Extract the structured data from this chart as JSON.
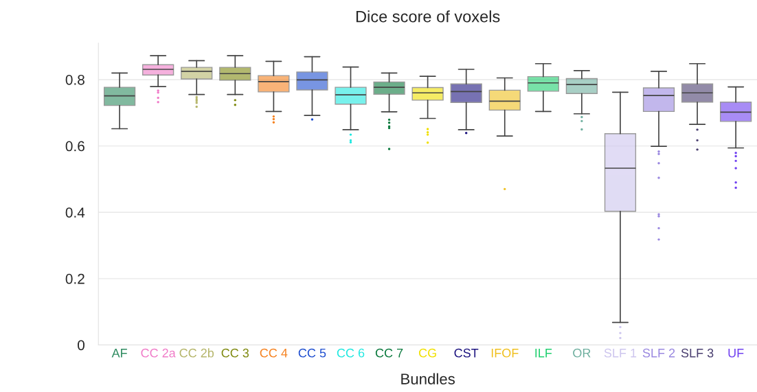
{
  "chart_data": {
    "type": "box",
    "title": "Dice score of voxels",
    "xlabel": "Bundles",
    "categories": [
      "AF",
      "CC 2a",
      "CC 2b",
      "CC 3",
      "CC 4",
      "CC 5",
      "CC 6",
      "CC 7",
      "CG",
      "CST",
      "IFOF",
      "ILF",
      "OR",
      "SLF 1",
      "SLF 2",
      "SLF 3",
      "UF"
    ],
    "colors": [
      "#2e8b60",
      "#f07cc8",
      "#b5b56a",
      "#7f8a10",
      "#f58220",
      "#1f4fd0",
      "#20e8e0",
      "#0b7a3e",
      "#f0e000",
      "#1e1580",
      "#f0c020",
      "#20d070",
      "#70b0a0",
      "#cdc5ee",
      "#9a88e0",
      "#4a3f70",
      "#7040f0"
    ],
    "boxes": [
      {
        "low": 0.652,
        "q1": 0.722,
        "median": 0.751,
        "q3": 0.777,
        "high": 0.82
      },
      {
        "low": 0.779,
        "q1": 0.814,
        "median": 0.831,
        "q3": 0.845,
        "high": 0.872,
        "outliers": [
          0.767,
          0.761,
          0.745,
          0.732
        ]
      },
      {
        "low": 0.755,
        "q1": 0.802,
        "median": 0.825,
        "q3": 0.837,
        "high": 0.857,
        "outliers": [
          0.747,
          0.741,
          0.736,
          0.73,
          0.718
        ]
      },
      {
        "low": 0.755,
        "q1": 0.798,
        "median": 0.818,
        "q3": 0.837,
        "high": 0.872,
        "outliers": [
          0.738,
          0.724
        ]
      },
      {
        "low": 0.704,
        "q1": 0.763,
        "median": 0.794,
        "q3": 0.812,
        "high": 0.855,
        "outliers": [
          0.689,
          0.681,
          0.671
        ]
      },
      {
        "low": 0.692,
        "q1": 0.769,
        "median": 0.799,
        "q3": 0.823,
        "high": 0.869,
        "outliers": [
          0.68
        ]
      },
      {
        "low": 0.649,
        "q1": 0.726,
        "median": 0.754,
        "q3": 0.777,
        "high": 0.838,
        "outliers": [
          0.634,
          0.617,
          0.611
        ]
      },
      {
        "low": 0.703,
        "q1": 0.756,
        "median": 0.777,
        "q3": 0.793,
        "high": 0.82,
        "outliers": [
          0.679,
          0.67,
          0.659,
          0.654,
          0.591
        ]
      },
      {
        "low": 0.683,
        "q1": 0.738,
        "median": 0.76,
        "q3": 0.776,
        "high": 0.81,
        "outliers": [
          0.651,
          0.641,
          0.634,
          0.61
        ]
      },
      {
        "low": 0.649,
        "q1": 0.731,
        "median": 0.764,
        "q3": 0.787,
        "high": 0.831,
        "outliers": [
          0.639
        ]
      },
      {
        "low": 0.63,
        "q1": 0.708,
        "median": 0.735,
        "q3": 0.768,
        "high": 0.805,
        "outliers": [
          0.47
        ]
      },
      {
        "low": 0.704,
        "q1": 0.765,
        "median": 0.79,
        "q3": 0.809,
        "high": 0.848
      },
      {
        "low": 0.697,
        "q1": 0.758,
        "median": 0.785,
        "q3": 0.803,
        "high": 0.827,
        "outliers": [
          0.687,
          0.675,
          0.65
        ]
      },
      {
        "low": 0.068,
        "q1": 0.403,
        "median": 0.533,
        "q3": 0.637,
        "high": 0.762,
        "outliers": [
          0.054,
          0.036,
          0.021
        ]
      },
      {
        "low": 0.599,
        "q1": 0.704,
        "median": 0.752,
        "q3": 0.775,
        "high": 0.825,
        "outliers": [
          0.583,
          0.576,
          0.548,
          0.504,
          0.394,
          0.388,
          0.352,
          0.318
        ]
      },
      {
        "low": 0.665,
        "q1": 0.732,
        "median": 0.76,
        "q3": 0.787,
        "high": 0.848,
        "outliers": [
          0.649,
          0.617,
          0.589
        ]
      },
      {
        "low": 0.594,
        "q1": 0.674,
        "median": 0.702,
        "q3": 0.732,
        "high": 0.778,
        "outliers": [
          0.579,
          0.569,
          0.555,
          0.533,
          0.49,
          0.474
        ]
      }
    ],
    "ylim": [
      0,
      0.91
    ],
    "yticks": [
      0,
      0.2,
      0.4,
      0.6,
      0.8
    ],
    "grid": "y"
  }
}
